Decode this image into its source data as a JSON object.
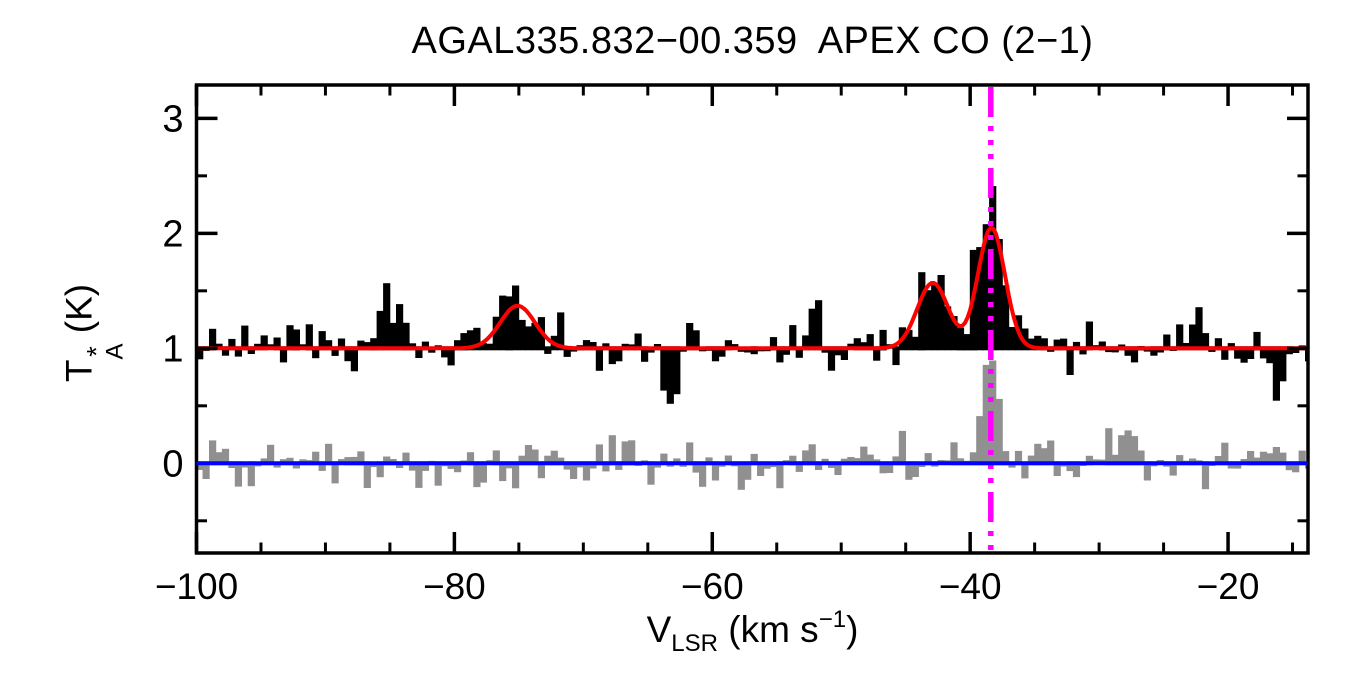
{
  "page": {
    "background": "#ffffff"
  },
  "chart_data": {
    "type": "line",
    "title": "AGAL335.832−00.359  APEX CO (2−1)",
    "source_name": "AGAL335.832−00.359",
    "line_id": "APEX CO (2−1)",
    "xlabel_parts": {
      "base": "V",
      "subscript": "LSR",
      "unit_open": " (km s",
      "unit_exponent": "−1",
      "unit_close": ")"
    },
    "ylabel_parts": {
      "base": "T",
      "superscript": "*",
      "subscript": "A",
      "unit": " (K)"
    },
    "xlabel_plain": "VLSR (km s−1)",
    "ylabel_plain": "TA* (K)",
    "xlim": [
      -100,
      -13.8
    ],
    "ylim": [
      -0.78,
      3.29
    ],
    "grid": false,
    "legend": "none",
    "x_axis": {
      "major_ticks": [
        {
          "v": -100,
          "label": "−100"
        },
        {
          "v": -80,
          "label": "−80"
        },
        {
          "v": -60,
          "label": "−60"
        },
        {
          "v": -40,
          "label": "−40"
        },
        {
          "v": -20,
          "label": "−20"
        }
      ],
      "minor_step": 5
    },
    "y_axis": {
      "major_ticks": [
        {
          "v": 0,
          "label": "0"
        },
        {
          "v": 1,
          "label": "1"
        },
        {
          "v": 2,
          "label": "2"
        },
        {
          "v": 3,
          "label": "3"
        }
      ],
      "minor_step": 0.5
    },
    "channel_width_kms": 0.5,
    "series": [
      {
        "name": "comparison-spectrum",
        "type": "histogram",
        "color": "#909090",
        "baseline": 0.0,
        "noise_sigma": 0.105,
        "seed": 987211,
        "components": [
          {
            "center": -38.55,
            "amp": 0.78,
            "sigma": 0.7
          },
          {
            "center": -28.0,
            "amp": 0.2,
            "sigma": 0.7
          }
        ]
      },
      {
        "name": "observed-spectrum",
        "type": "histogram",
        "color": "#000000",
        "baseline": 1.0,
        "noise_sigma": 0.1,
        "seed": 20240513,
        "components": [
          {
            "center": -75.1,
            "amp": 0.37,
            "sigma": 1.35
          },
          {
            "center": -42.9,
            "amp": 0.57,
            "sigma": 1.2
          },
          {
            "center": -38.35,
            "amp": 1.05,
            "sigma": 1.05
          },
          {
            "center": -85.3,
            "amp": 0.42,
            "sigma": 0.7
          },
          {
            "center": -52.2,
            "amp": 0.3,
            "sigma": 0.45
          },
          {
            "center": -63.2,
            "amp": -0.3,
            "sigma": 0.5
          },
          {
            "center": -39.6,
            "amp": 0.28,
            "sigma": 0.4
          },
          {
            "center": -38.2,
            "amp": 0.3,
            "sigma": 0.45
          },
          {
            "center": -22.5,
            "amp": 0.42,
            "sigma": 0.4
          },
          {
            "center": -16.6,
            "amp": -0.25,
            "sigma": 0.6
          }
        ]
      },
      {
        "name": "gaussian-fit",
        "type": "curve",
        "color": "#ff0000",
        "baseline": 1.0,
        "components": [
          {
            "center": -75.1,
            "amp": 0.37,
            "sigma": 1.35
          },
          {
            "center": -42.9,
            "amp": 0.57,
            "sigma": 1.2
          },
          {
            "center": -38.35,
            "amp": 1.05,
            "sigma": 1.05
          }
        ]
      }
    ],
    "zero_line": {
      "color": "#0000ff",
      "y": 0
    },
    "velocity_marker": {
      "color": "#ff00ff",
      "x": -38.4,
      "style": "dash-dot-dot-dot"
    },
    "peak_readings": {
      "fit_peak_positions_kms": [
        -75.1,
        -42.9,
        -38.35
      ],
      "fit_peak_heights_K": [
        1.37,
        1.57,
        2.05
      ],
      "observed_max_K": 2.39,
      "comparison_peak_K": 0.8
    }
  }
}
